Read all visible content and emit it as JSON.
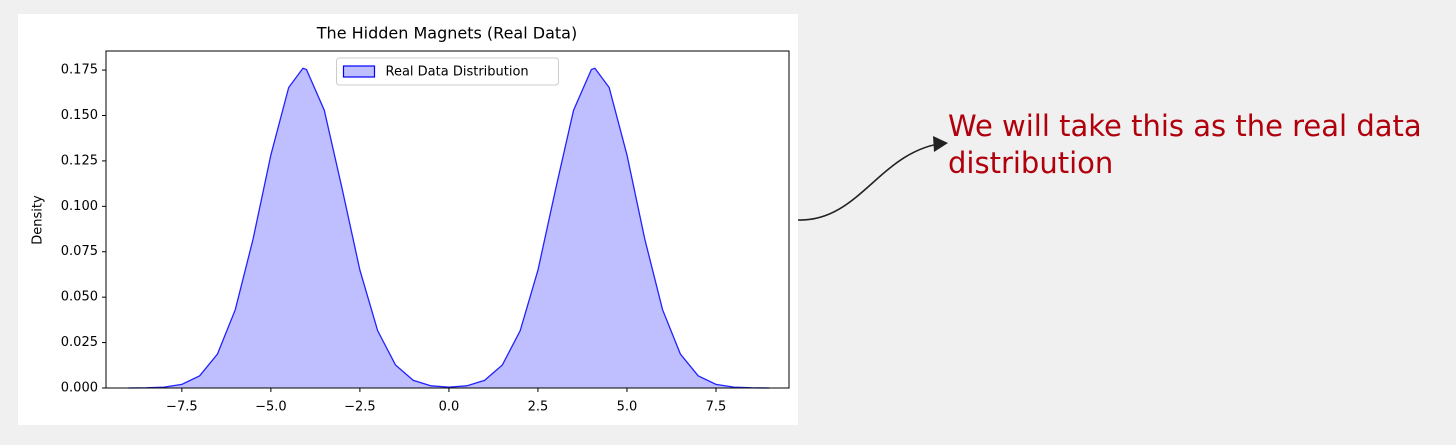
{
  "chart_data": {
    "type": "area",
    "title": "The Hidden Magnets (Real Data)",
    "y_label": "Density",
    "x": [
      -9,
      -8.5,
      -8,
      -7.5,
      -7,
      -6.5,
      -6,
      -5.5,
      -5,
      -4.5,
      -4.1,
      -4,
      -3.5,
      -3,
      -2.5,
      -2,
      -1.5,
      -1,
      -0.5,
      0,
      0.5,
      1,
      1.5,
      2,
      2.5,
      3,
      3.5,
      4,
      4.1,
      4.5,
      5,
      5.5,
      6,
      6.5,
      7,
      7.5,
      8,
      8.5,
      9
    ],
    "series": [
      {
        "name": "Real Data Distribution",
        "color": "#0000ff",
        "values": [
          0,
          0.0001,
          0.0005,
          0.002,
          0.0067,
          0.0187,
          0.0431,
          0.082,
          0.1283,
          0.1654,
          0.176,
          0.1753,
          0.1529,
          0.1098,
          0.0649,
          0.0315,
          0.0127,
          0.0042,
          0.0012,
          0.0005,
          0.0012,
          0.0042,
          0.0127,
          0.0315,
          0.0649,
          0.1098,
          0.1529,
          0.1753,
          0.176,
          0.1654,
          0.1283,
          0.082,
          0.0431,
          0.0187,
          0.0067,
          0.002,
          0.0005,
          0.0001,
          0
        ]
      }
    ],
    "fill_alpha": 0.25,
    "xlim": [
      -9.63,
      9.55
    ],
    "ylim": [
      0,
      0.1855
    ],
    "xticks": [
      {
        "value": -7.5,
        "label": "−7.5"
      },
      {
        "value": -5,
        "label": "−5.0"
      },
      {
        "value": -2.5,
        "label": "−2.5"
      },
      {
        "value": 0,
        "label": "0.0"
      },
      2.5,
      {
        "value": 5,
        "label": "5.0"
      },
      7.5
    ],
    "yticks": [
      {
        "value": 0,
        "label": "0.000"
      },
      0.025,
      {
        "value": 0.05,
        "label": "0.050"
      },
      0.075,
      {
        "value": 0.1,
        "label": "0.100"
      },
      0.125,
      {
        "value": 0.15,
        "label": "0.150"
      },
      0.175
    ],
    "legend": "upper center",
    "annotation": "We will take this as the real data distribution"
  }
}
